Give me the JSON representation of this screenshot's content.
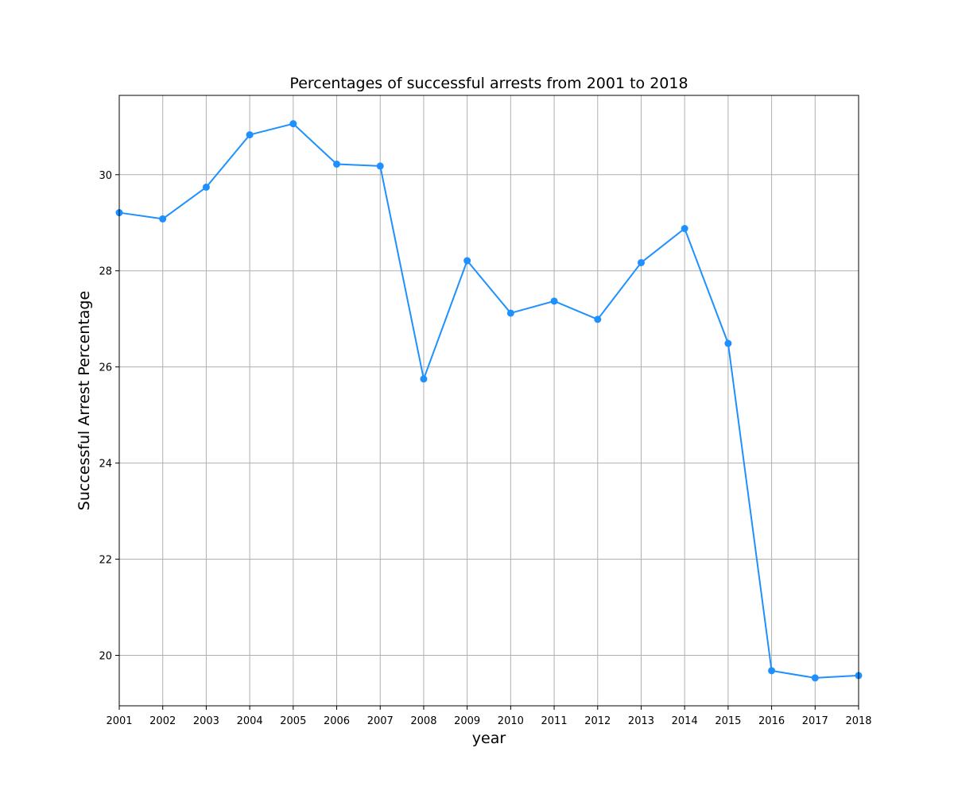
{
  "chart_data": {
    "type": "line",
    "title": "Percentages of successful arrests from 2001 to 2018",
    "xlabel": "year",
    "ylabel": "Successful Arrest Percentage",
    "x": [
      2001,
      2002,
      2003,
      2004,
      2005,
      2006,
      2007,
      2008,
      2009,
      2010,
      2011,
      2012,
      2013,
      2014,
      2015,
      2016,
      2017,
      2018
    ],
    "series": [
      {
        "values": [
          29.21,
          29.08,
          29.74,
          30.83,
          31.06,
          30.22,
          30.18,
          25.75,
          28.21,
          27.12,
          27.37,
          26.99,
          28.17,
          28.88,
          26.49,
          19.68,
          19.53,
          19.58
        ]
      }
    ],
    "xlim": [
      2001,
      2018
    ],
    "ylim": [
      18.95,
      31.65
    ],
    "xticks": [
      "2001",
      "2002",
      "2003",
      "2004",
      "2005",
      "2006",
      "2007",
      "2008",
      "2009",
      "2010",
      "2011",
      "2012",
      "2013",
      "2014",
      "2015",
      "2016",
      "2017",
      "2018"
    ],
    "yticks": [
      "20",
      "22",
      "24",
      "26",
      "28",
      "30"
    ],
    "grid": true,
    "line_color": "#1e90ff",
    "grid_color": "#b0b0b0"
  }
}
